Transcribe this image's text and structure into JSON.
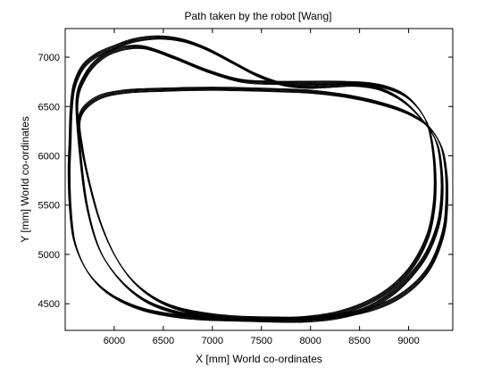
{
  "chart_data": {
    "type": "line",
    "title": "Path taken by the robot [Wang]",
    "xlabel": "X [mm] World co-ordinates",
    "ylabel": "Y [mm] World co-ordinates",
    "xlim": [
      5500,
      9450
    ],
    "ylim": [
      4230,
      7290
    ],
    "xticks": [
      6000,
      6500,
      7000,
      7500,
      8000,
      8500,
      9000
    ],
    "yticks": [
      4500,
      5000,
      5500,
      6000,
      6500,
      7000
    ],
    "grid": false,
    "colors": {
      "line": "#000000",
      "axes": "#000000",
      "background": "#ffffff"
    },
    "series": [
      {
        "loop": "outer",
        "x": [
          5560,
          5590,
          5680,
          5820,
          6000,
          6200,
          6450,
          6700,
          6950,
          7200,
          7450,
          7700,
          7950,
          8200,
          8450,
          8700,
          8950,
          9150,
          9280,
          9330,
          9340,
          9300,
          9180,
          9000,
          8800,
          8550,
          8250,
          7950,
          7600,
          7250,
          6900,
          6600,
          6300,
          6050,
          5850,
          5700,
          5590,
          5550,
          5540,
          5550,
          5560
        ],
        "y": [
          6450,
          6700,
          6900,
          7020,
          7100,
          7170,
          7200,
          7170,
          7080,
          6950,
          6820,
          6730,
          6700,
          6710,
          6720,
          6680,
          6550,
          6350,
          6150,
          5900,
          5600,
          5300,
          5000,
          4760,
          4580,
          4440,
          4360,
          4330,
          4330,
          4340,
          4350,
          4380,
          4440,
          4540,
          4680,
          4870,
          5150,
          5500,
          5850,
          6150,
          6450
        ]
      },
      {
        "loop": "lower-right",
        "x": [
          5650,
          5820,
          6100,
          6500,
          7000,
          7500,
          8000,
          8400,
          8750,
          9000,
          9200,
          9330,
          9380,
          9390,
          9370,
          9300,
          9200,
          9050,
          8850,
          8600,
          8300,
          7950,
          7600,
          7250,
          6950,
          6650,
          6400,
          6180,
          6000,
          5850,
          5740,
          5670,
          5650
        ],
        "y": [
          6400,
          6580,
          6650,
          6670,
          6680,
          6670,
          6650,
          6600,
          6520,
          6430,
          6300,
          6100,
          5850,
          5600,
          5300,
          5050,
          4850,
          4680,
          4540,
          4440,
          4380,
          4350,
          4350,
          4360,
          4390,
          4450,
          4560,
          4740,
          5000,
          5350,
          5750,
          6100,
          6400
        ]
      },
      {
        "loop": "upper-left",
        "x": [
          5620,
          5700,
          5850,
          6050,
          6300,
          6600,
          6950,
          7300,
          7650,
          8000,
          8300,
          8550,
          8750,
          8950,
          9100,
          9200,
          9250,
          9270,
          9260,
          9200,
          9050,
          8850,
          8600,
          8300,
          8000,
          7650,
          7300,
          6950,
          6600,
          6300,
          6050,
          5850,
          5720,
          5650,
          5620
        ],
        "y": [
          6550,
          6800,
          6980,
          7080,
          7100,
          7000,
          6860,
          6760,
          6740,
          6740,
          6740,
          6730,
          6700,
          6620,
          6480,
          6300,
          6050,
          5780,
          5500,
          5200,
          4900,
          4680,
          4520,
          4410,
          4360,
          4340,
          4340,
          4360,
          4420,
          4540,
          4750,
          5050,
          5500,
          6050,
          6550
        ]
      }
    ]
  }
}
